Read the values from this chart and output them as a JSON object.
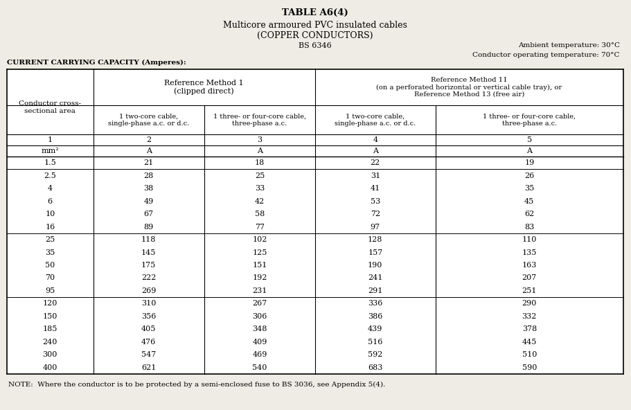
{
  "title": "TABLE A6(4)",
  "subtitle1": "Multicore armoured PVC insulated cables",
  "subtitle2": "(COPPER CONDUCTORS)",
  "subtitle3": "BS 6346",
  "ambient_temp": "Ambient temperature: 30°C",
  "conductor_temp": "Conductor operating temperature: 70°C",
  "current_label": "CURRENT CARRYING CAPACITY (Amperes):",
  "note": "NOTE:  Where the conductor is to be protected by a semi-enclosed fuse to BS 3036, see Appendix 5(4).",
  "col1_header": "Conductor cross-\nsectional area",
  "ref1_header": "Reference Method 1\n(clipped direct)",
  "ref2_header": "Reference Method 11\n(on a perforated horizontal or vertical cable tray), or\nReference Method 13 (free air)",
  "col2a_header": "1 two-core cable,\nsingle-phase a.c. or d.c.",
  "col2b_header": "1 three- or four-core cable,\nthree-phase a.c.",
  "col3a_header": "1 two-core cable,\nsingle-phase a.c. or d.c.",
  "col3b_header": "1 three- or four-core cable,\nthree-phase a.c.",
  "row_nums": [
    "1",
    "2",
    "3",
    "4",
    "5"
  ],
  "unit_row": [
    "mm²",
    "A",
    "A",
    "A",
    "A"
  ],
  "data": [
    [
      "1.5",
      "21",
      "18",
      "22",
      "19"
    ],
    [
      "2.5",
      "28",
      "25",
      "31",
      "26"
    ],
    [
      "4",
      "38",
      "33",
      "41",
      "35"
    ],
    [
      "6",
      "49",
      "42",
      "53",
      "45"
    ],
    [
      "10",
      "67",
      "58",
      "72",
      "62"
    ],
    [
      "16",
      "89",
      "77",
      "97",
      "83"
    ],
    [
      "25",
      "118",
      "102",
      "128",
      "110"
    ],
    [
      "35",
      "145",
      "125",
      "157",
      "135"
    ],
    [
      "50",
      "175",
      "151",
      "190",
      "163"
    ],
    [
      "70",
      "222",
      "192",
      "241",
      "207"
    ],
    [
      "95",
      "269",
      "231",
      "291",
      "251"
    ],
    [
      "120",
      "310",
      "267",
      "336",
      "290"
    ],
    [
      "150",
      "356",
      "306",
      "386",
      "332"
    ],
    [
      "185",
      "405",
      "348",
      "439",
      "378"
    ],
    [
      "240",
      "476",
      "409",
      "516",
      "445"
    ],
    [
      "300",
      "547",
      "469",
      "592",
      "510"
    ],
    [
      "400",
      "621",
      "540",
      "683",
      "590"
    ]
  ],
  "group_separators_after": [
    0,
    5,
    10
  ],
  "bg_color": "#eeece4",
  "table_bg": "#ffffff"
}
